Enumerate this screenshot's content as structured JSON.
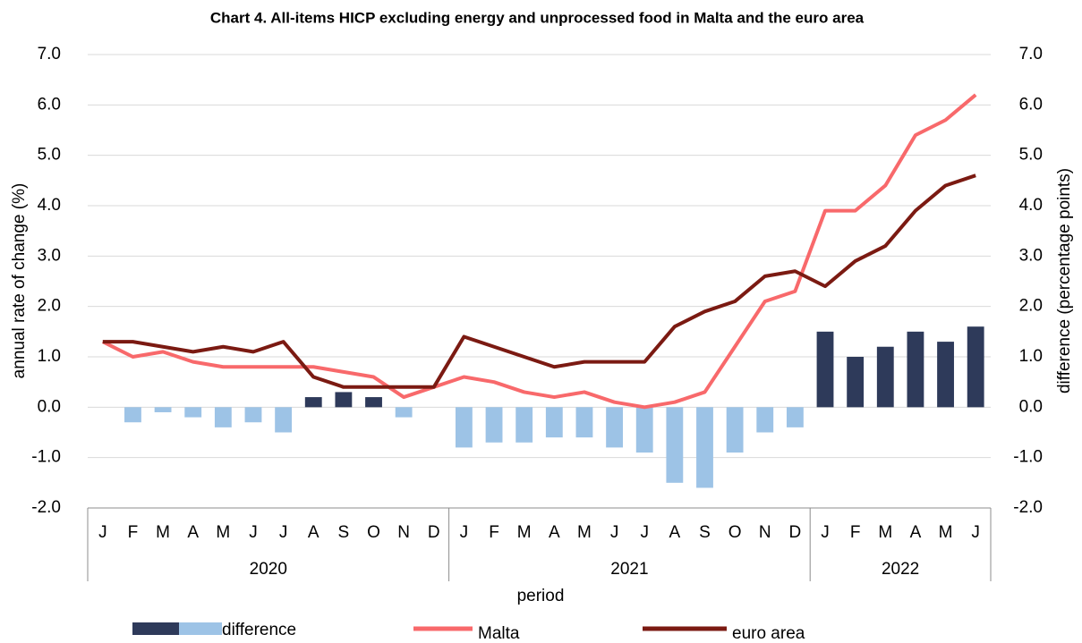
{
  "chart_data": {
    "type": "combo",
    "title": "Chart 4. All-items HICP excluding energy and unprocessed food in Malta and the euro area",
    "xlabel": "period",
    "ylabel": "annual rate of change (%)",
    "y2label": "difference (percentage points)",
    "groups": [
      {
        "name": "2020",
        "categories": [
          "J",
          "F",
          "M",
          "A",
          "M",
          "J",
          "J",
          "A",
          "S",
          "O",
          "N",
          "D"
        ]
      },
      {
        "name": "2021",
        "categories": [
          "J",
          "F",
          "M",
          "A",
          "M",
          "J",
          "J",
          "A",
          "S",
          "O",
          "N",
          "D"
        ]
      },
      {
        "name": "2022",
        "categories": [
          "J",
          "F",
          "M",
          "A",
          "M",
          "J"
        ]
      }
    ],
    "series": [
      {
        "name": "difference",
        "type": "bar",
        "axis": "y2",
        "color": "#2e3a5a",
        "negative_color": "#9dc3e6",
        "values": [
          0.0,
          -0.3,
          -0.1,
          -0.2,
          -0.4,
          -0.3,
          -0.5,
          0.2,
          0.3,
          0.2,
          -0.2,
          0.0,
          -0.8,
          -0.7,
          -0.7,
          -0.6,
          -0.6,
          -0.8,
          -0.9,
          -1.5,
          -1.6,
          -0.9,
          -0.5,
          -0.4,
          1.5,
          1.0,
          1.2,
          1.5,
          1.3,
          1.6
        ]
      },
      {
        "name": "Malta",
        "type": "line",
        "color": "#f8696b",
        "values": [
          1.3,
          1.0,
          1.1,
          0.9,
          0.8,
          0.8,
          0.8,
          0.8,
          0.7,
          0.6,
          0.2,
          0.4,
          0.6,
          0.5,
          0.3,
          0.2,
          0.3,
          0.1,
          0.0,
          0.1,
          0.3,
          1.2,
          2.1,
          2.3,
          3.9,
          3.9,
          4.4,
          5.4,
          5.7,
          6.2
        ]
      },
      {
        "name": "euro area",
        "type": "line",
        "color": "#7b1a12",
        "values": [
          1.3,
          1.3,
          1.2,
          1.1,
          1.2,
          1.1,
          1.3,
          0.6,
          0.4,
          0.4,
          0.4,
          0.4,
          1.4,
          1.2,
          1.0,
          0.8,
          0.9,
          0.9,
          0.9,
          1.6,
          1.9,
          2.1,
          2.6,
          2.7,
          2.4,
          2.9,
          3.2,
          3.9,
          4.4,
          4.6
        ]
      }
    ],
    "ylim": [
      -2,
      7
    ],
    "yticks": [
      {
        "value": 7,
        "label": "7.0"
      },
      {
        "value": 6,
        "label": "6.0"
      },
      {
        "value": 5,
        "label": "5.0"
      },
      {
        "value": 4,
        "label": "4.0"
      },
      {
        "value": 3,
        "label": "3.0"
      },
      {
        "value": 2,
        "label": "2.0"
      },
      {
        "value": 1,
        "label": "1.0"
      },
      {
        "value": 0,
        "label": "0.0"
      },
      {
        "value": -1,
        "label": "-1.0"
      },
      {
        "value": -2,
        "label": "-2.0"
      }
    ],
    "y2lim": [
      -2,
      7
    ],
    "y2ticks": [
      {
        "value": 7,
        "label": "7.0"
      },
      {
        "value": 6,
        "label": "6.0"
      },
      {
        "value": 5,
        "label": "5.0"
      },
      {
        "value": 4,
        "label": "4.0"
      },
      {
        "value": 3,
        "label": "3.0"
      },
      {
        "value": 2,
        "label": "2.0"
      },
      {
        "value": 1,
        "label": "1.0"
      },
      {
        "value": 0,
        "label": "0.0"
      },
      {
        "value": -1,
        "label": "-1.0"
      },
      {
        "value": -2,
        "label": "-2.0"
      }
    ],
    "grid": true,
    "legend": "bottom"
  }
}
